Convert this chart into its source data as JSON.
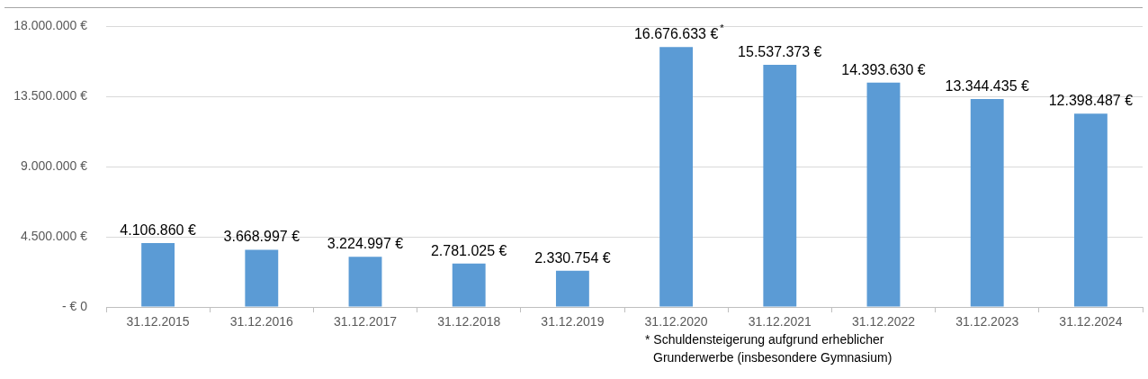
{
  "chart_data": {
    "type": "bar",
    "categories": [
      "31.12.2015",
      "31.12.2016",
      "31.12.2017",
      "31.12.2018",
      "31.12.2019",
      "31.12.2020",
      "31.12.2021",
      "31.12.2022",
      "31.12.2023",
      "31.12.2024"
    ],
    "values": [
      4106860,
      3668997,
      3224997,
      2781025,
      2330754,
      16676633,
      15537373,
      14393630,
      13344435,
      12398487
    ],
    "color": "#5b9bd5",
    "value_labels": [
      "4.106.860 €",
      "3.668.997 €",
      "3.224.997 €",
      "2.781.025 €",
      "2.330.754 €",
      "16.676.633 €$^{*}$",
      "15.537.373 €",
      "14.393.630 €",
      "13.344.435 €",
      "12.398.487 €"
    ],
    "ylim": [
      0,
      18000000
    ],
    "yticks": [
      {
        "value": 0,
        "label": "- € 0"
      },
      {
        "value": 4500000,
        "label": "4.500.000 €"
      },
      {
        "value": 9000000,
        "label": "9.000.000 €"
      },
      {
        "value": 13500000,
        "label": "13.500.000 €"
      },
      {
        "value": 18000000,
        "label": "18.000.000 €"
      }
    ],
    "grid": "y",
    "annotations": [
      "* Schuldensteigerung aufgrund erheblicher\nGrunderwerbe (insbesondere Gymnasium)"
    ]
  }
}
